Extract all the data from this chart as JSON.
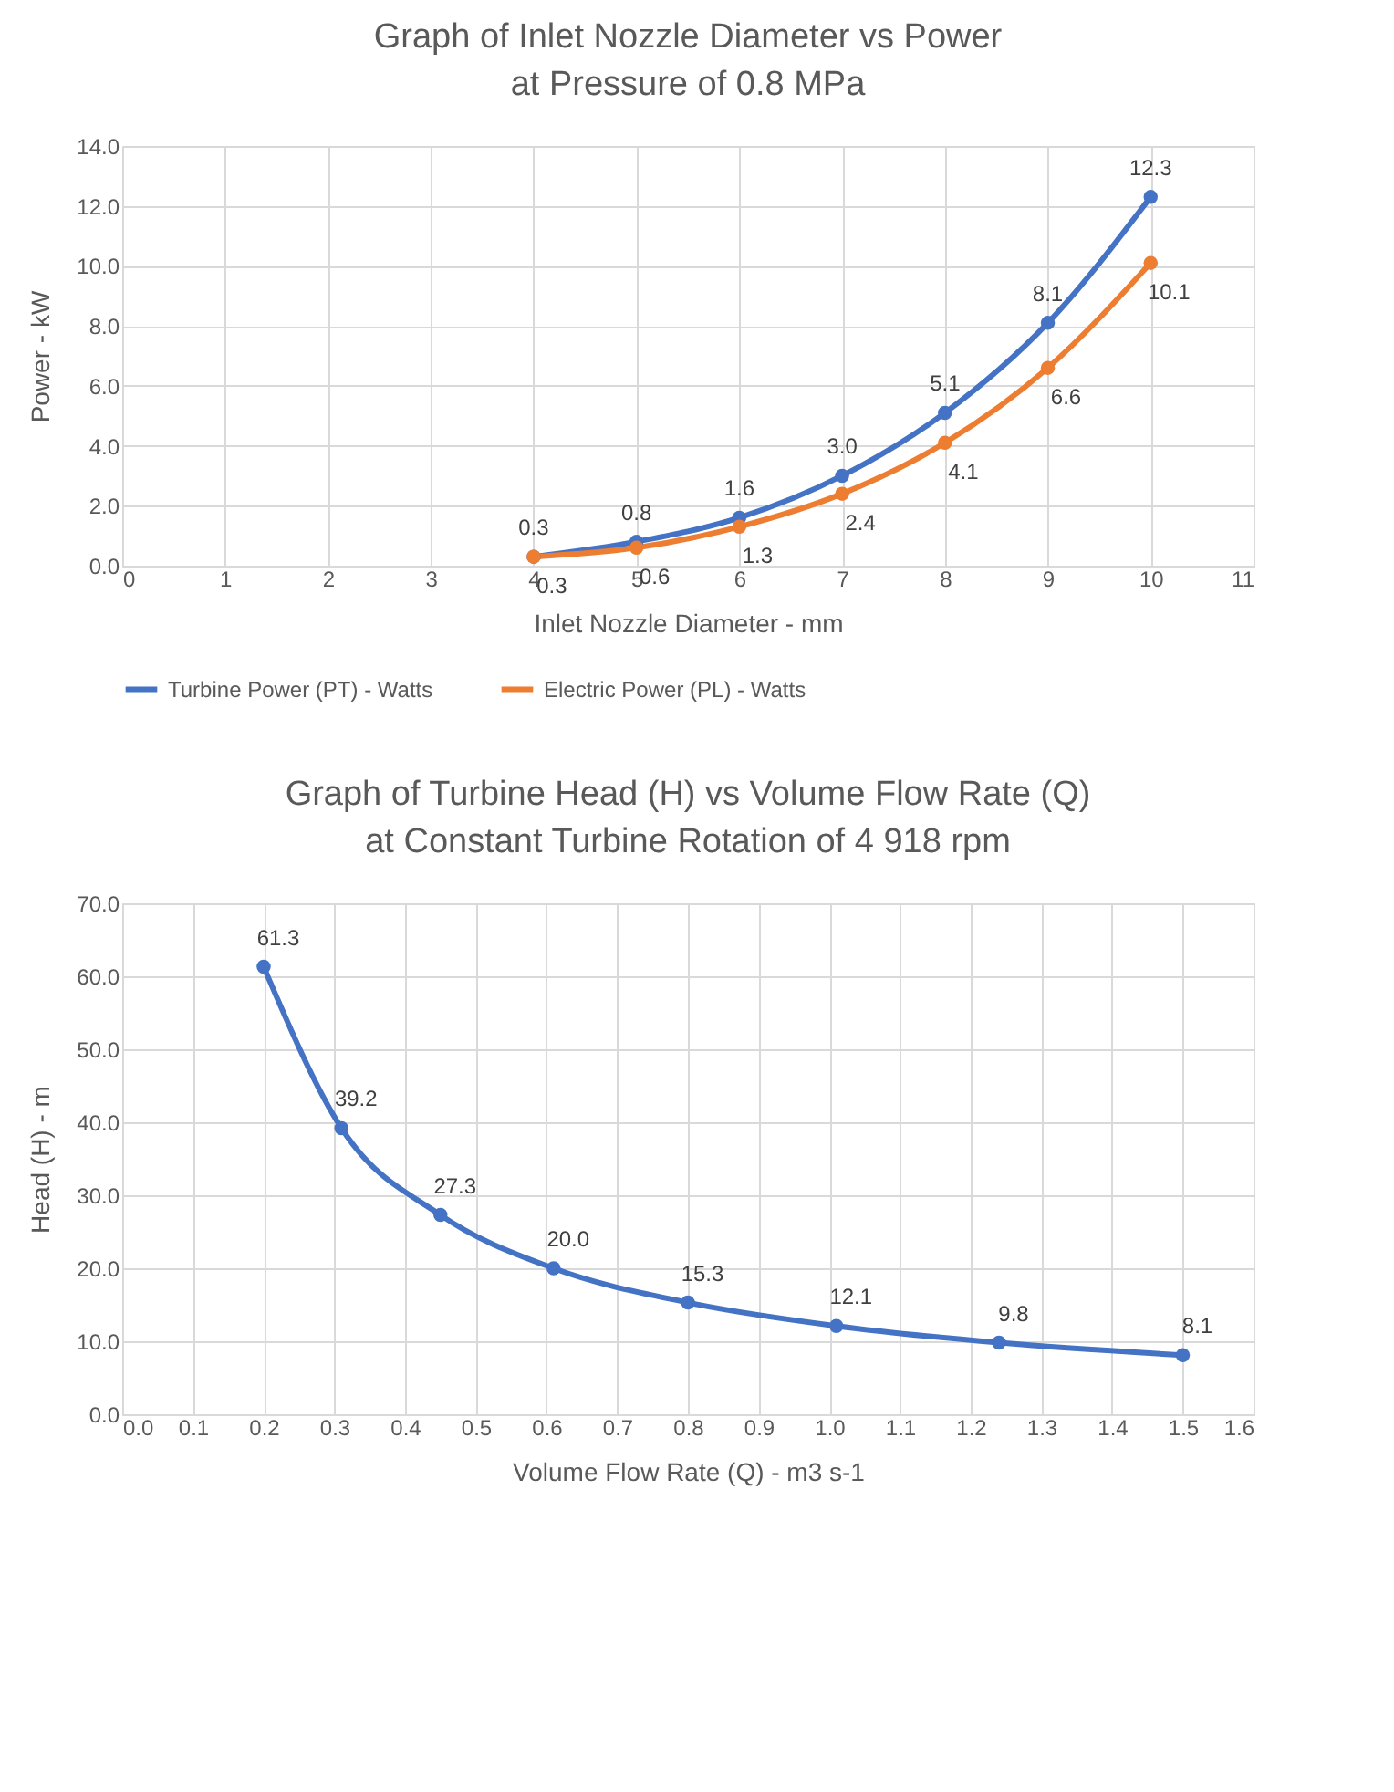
{
  "chart_data": [
    {
      "type": "line",
      "title": "Graph of Inlet Nozzle Diameter vs Power\nat Pressure of 0.8 MPa",
      "xlabel": "Inlet Nozzle Diameter - mm",
      "ylabel": "Power - kW",
      "x": [
        4,
        5,
        6,
        7,
        8,
        9,
        10
      ],
      "series": [
        {
          "name": "Turbine Power (PT) - Watts",
          "color": "#4472c4",
          "values": [
            0.3,
            0.8,
            1.6,
            3.0,
            5.1,
            8.1,
            12.3
          ],
          "value_labels": [
            "0.3",
            "0.8",
            "1.6",
            "3.0",
            "5.1",
            "8.1",
            "12.3"
          ]
        },
        {
          "name": "Electric Power (PL) - Watts",
          "color": "#ed7d31",
          "values": [
            0.3,
            0.6,
            1.3,
            2.4,
            4.1,
            6.6,
            10.1
          ],
          "value_labels": [
            "0.3",
            "0.6",
            "1.3",
            "2.4",
            "4.1",
            "6.6",
            "10.1"
          ]
        }
      ],
      "xlim": [
        0,
        11
      ],
      "xticks": [
        0,
        1,
        2,
        3,
        4,
        5,
        6,
        7,
        8,
        9,
        10,
        11
      ],
      "ylim": [
        0,
        14
      ],
      "yticks": [
        {
          "value": 0,
          "label": "0.0"
        },
        {
          "value": 2,
          "label": "2.0"
        },
        {
          "value": 4,
          "label": "4.0"
        },
        {
          "value": 6,
          "label": "6.0"
        },
        {
          "value": 8,
          "label": "8.0"
        },
        {
          "value": 10,
          "label": "10.0"
        },
        {
          "value": 12,
          "label": "12.0"
        },
        {
          "value": 14,
          "label": "14.0"
        }
      ],
      "grid": true,
      "legend": "bottom",
      "marker": "circle",
      "line_style": "solid"
    },
    {
      "type": "line",
      "title": "Graph of Turbine Head (H) vs Volume Flow Rate (Q)\nat Constant Turbine Rotation of 4 918 rpm",
      "xlabel": "Volume Flow Rate (Q) - m3 s-1",
      "ylabel": "Head (H) - m",
      "x": [
        0.2,
        0.31,
        0.45,
        0.61,
        0.8,
        1.01,
        1.24,
        1.5
      ],
      "series": [
        {
          "color": "#4472c4",
          "values": [
            61.3,
            39.2,
            27.3,
            20.0,
            15.3,
            12.1,
            9.8,
            8.1
          ],
          "value_labels": [
            "61.3",
            "39.2",
            "27.3",
            "20.0",
            "15.3",
            "12.1",
            "9.8",
            "8.1"
          ]
        }
      ],
      "xlim": [
        0,
        1.6
      ],
      "xticks": [
        {
          "value": 0,
          "label": "0.0"
        },
        {
          "value": 0.1,
          "label": "0.1"
        },
        {
          "value": 0.2,
          "label": "0.2"
        },
        {
          "value": 0.3,
          "label": "0.3"
        },
        {
          "value": 0.4,
          "label": "0.4"
        },
        {
          "value": 0.5,
          "label": "0.5"
        },
        {
          "value": 0.6,
          "label": "0.6"
        },
        {
          "value": 0.7,
          "label": "0.7"
        },
        {
          "value": 0.8,
          "label": "0.8"
        },
        {
          "value": 0.9,
          "label": "0.9"
        },
        {
          "value": 1,
          "label": "1.0"
        },
        {
          "value": 1.1,
          "label": "1.1"
        },
        {
          "value": 1.2,
          "label": "1.2"
        },
        {
          "value": 1.3,
          "label": "1.3"
        },
        {
          "value": 1.4,
          "label": "1.4"
        },
        {
          "value": 1.5,
          "label": "1.5"
        },
        {
          "value": 1.6,
          "label": "1.6"
        }
      ],
      "ylim": [
        0,
        70
      ],
      "yticks": [
        {
          "value": 0,
          "label": "0.0"
        },
        {
          "value": 10,
          "label": "10.0"
        },
        {
          "value": 20,
          "label": "20.0"
        },
        {
          "value": 30,
          "label": "30.0"
        },
        {
          "value": 40,
          "label": "40.0"
        },
        {
          "value": 50,
          "label": "50.0"
        },
        {
          "value": 60,
          "label": "60.0"
        },
        {
          "value": 70,
          "label": "70.0"
        }
      ],
      "grid": true,
      "marker": "circle",
      "line_style": "solid"
    }
  ]
}
